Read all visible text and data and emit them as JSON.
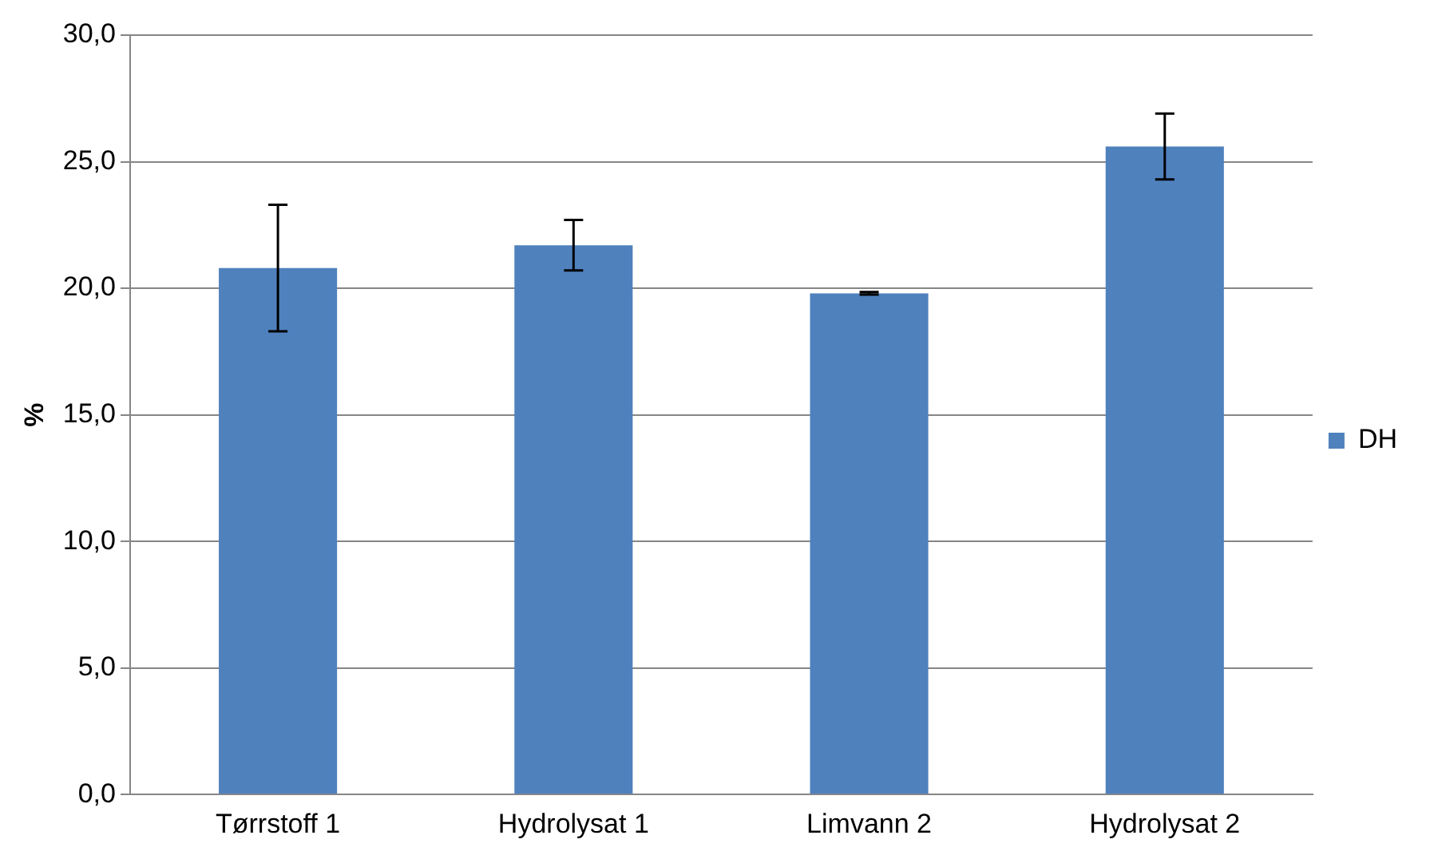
{
  "chart_data": {
    "type": "bar",
    "ylabel": "%",
    "categories": [
      "Tørrstoff 1",
      "Hydrolysat 1",
      "Limvann 2",
      "Hydrolysat 2"
    ],
    "series": [
      {
        "name": "DH",
        "color": "#4f81bd",
        "values": [
          20.8,
          21.7,
          19.8,
          25.6
        ],
        "errors": [
          2.5,
          1.0,
          0.05,
          1.3
        ]
      }
    ],
    "ylim": [
      0,
      30
    ],
    "yticks": [
      {
        "value": 0,
        "label": "0,0"
      },
      {
        "value": 5,
        "label": "5,0"
      },
      {
        "value": 10,
        "label": "10,0"
      },
      {
        "value": 15,
        "label": "15,0"
      },
      {
        "value": 20,
        "label": "20,0"
      },
      {
        "value": 25,
        "label": "25,0"
      },
      {
        "value": 30,
        "label": "30,0"
      }
    ],
    "grid": "y",
    "legend": "right"
  }
}
